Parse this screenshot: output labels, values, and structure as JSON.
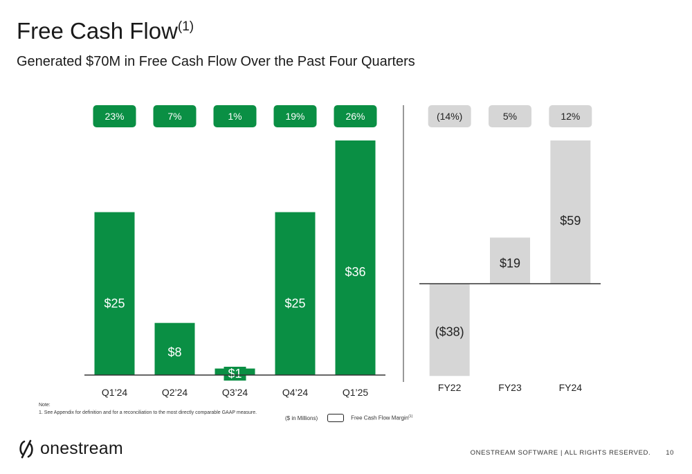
{
  "title": "Free Cash Flow",
  "title_superscript": "(1)",
  "subtitle": "Generated $70M in Free Cash Flow Over the Past Four Quarters",
  "colors": {
    "quarterly": "#0a8f44",
    "annual": "#d6d6d6",
    "axis": "#333333"
  },
  "chart_data": [
    {
      "type": "bar",
      "categories": [
        "Q1’24",
        "Q2’24",
        "Q3’24",
        "Q4’24",
        "Q1’25"
      ],
      "values": [
        25,
        8,
        1,
        25,
        36
      ],
      "value_labels": [
        "$25",
        "$8",
        "$1",
        "$25",
        "$36"
      ],
      "margins": [
        "23%",
        "7%",
        "1%",
        "19%",
        "26%"
      ],
      "color": "#0a8f44",
      "ylim": [
        0,
        36
      ]
    },
    {
      "type": "bar",
      "categories": [
        "FY22",
        "FY23",
        "FY24"
      ],
      "values": [
        -38,
        19,
        59
      ],
      "value_labels": [
        "($38)",
        "$19",
        "$59"
      ],
      "margins": [
        "(14%)",
        "5%",
        "12%"
      ],
      "color": "#d6d6d6",
      "ylim": [
        -38,
        59
      ]
    }
  ],
  "notes": {
    "heading": "Note:",
    "item1": "1.   See Appendix for definition and for a reconciliation to the most directly comparable GAAP measure."
  },
  "legend": {
    "units": "($ in Millions)",
    "margin_label": "Free Cash Flow Margin",
    "margin_superscript": "(1)"
  },
  "logo_text": "onestream",
  "footer": {
    "text": "ONESTREAM SOFTWARE  |  ALL RIGHTS RESERVED.",
    "page": "10"
  }
}
